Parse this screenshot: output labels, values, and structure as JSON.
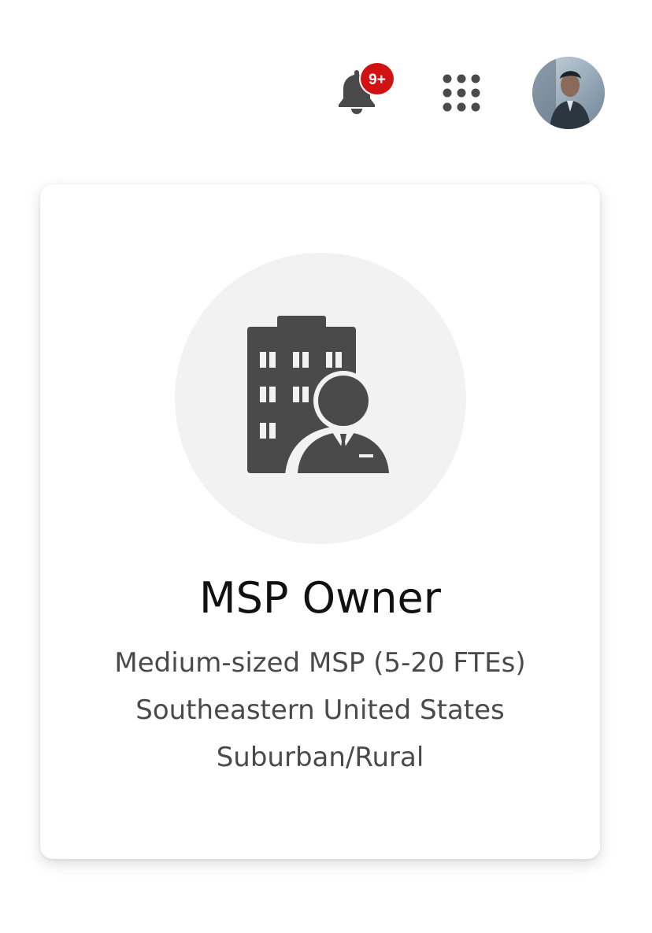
{
  "header": {
    "notifications": {
      "icon": "bell-icon",
      "badge": "9+",
      "badge_color": "#d11212"
    },
    "apps_menu": {
      "icon": "apps-grid-icon"
    },
    "user": {
      "icon": "avatar"
    }
  },
  "persona_card": {
    "icon": "building-with-businessman-icon",
    "title": "MSP Owner",
    "details": [
      "Medium-sized MSP (5-20 FTEs)",
      "Southeastern United States",
      "Suburban/Rural"
    ]
  },
  "colors": {
    "icon_gray": "#4a4a4a",
    "circle_bg": "#f2f2f2",
    "text_dark": "#111111",
    "text_muted": "#4a4a4a"
  }
}
